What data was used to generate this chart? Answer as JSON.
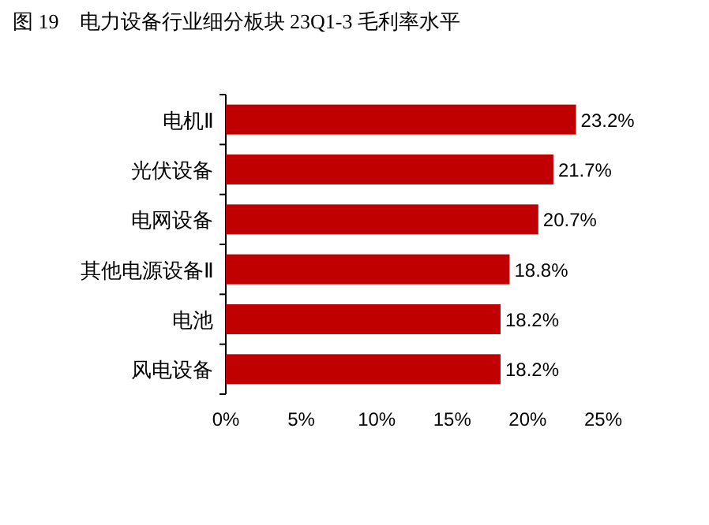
{
  "chart_data": {
    "type": "bar",
    "orientation": "horizontal",
    "title": "图 19　电力设备行业细分板块 23Q1-3 毛利率水平",
    "categories": [
      "电机Ⅱ",
      "光伏设备",
      "电网设备",
      "其他电源设备Ⅱ",
      "电池",
      "风电设备"
    ],
    "values": [
      23.2,
      21.7,
      20.7,
      18.8,
      18.2,
      18.2
    ],
    "value_labels": [
      "23.2%",
      "21.7%",
      "20.7%",
      "18.8%",
      "18.2%",
      "18.2%"
    ],
    "color": "#c00000",
    "xlim": [
      0,
      25
    ],
    "xticks": [
      {
        "value": 0,
        "label": "0%"
      },
      {
        "value": 5,
        "label": "5%"
      },
      {
        "value": 10,
        "label": "10%"
      },
      {
        "value": 15,
        "label": "15%"
      },
      {
        "value": 20,
        "label": "20%"
      },
      {
        "value": 25,
        "label": "25%"
      }
    ],
    "grid": false
  }
}
